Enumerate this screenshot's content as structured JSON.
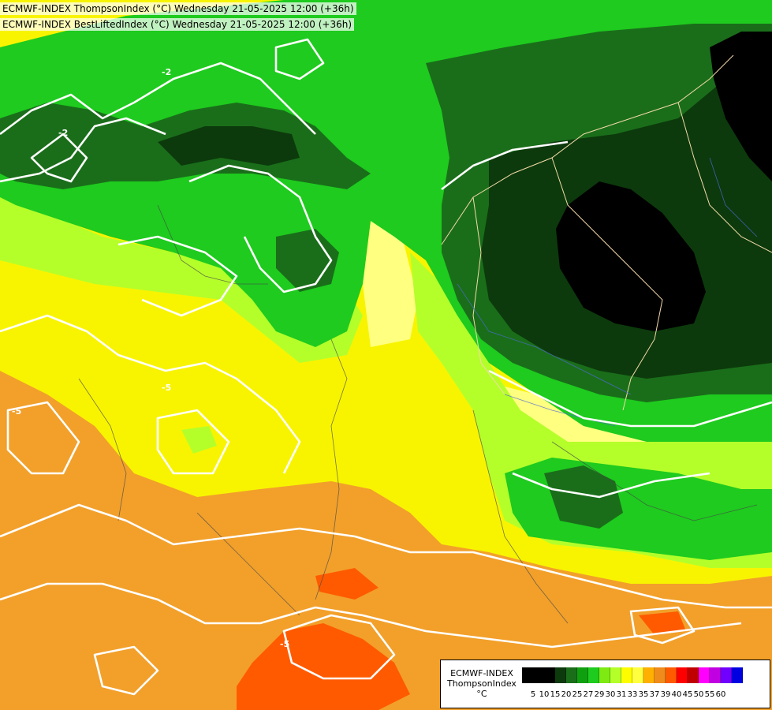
{
  "header": {
    "line1": "ECMWF-INDEX ThompsonIndex (°C) Wednesday 21-05-2025 12:00 (+36h)",
    "line2": "ECMWF-INDEX BestLiftedIndex (°C) Wednesday 21-05-2025 12:00 (+36h)"
  },
  "legend": {
    "source": "ECMWF-INDEX",
    "parameter": "ThompsonIndex",
    "unit": "°C",
    "ticks": [
      "5",
      "10",
      "15",
      "20",
      "25",
      "27",
      "29",
      "30",
      "31",
      "33",
      "35",
      "37",
      "39",
      "40",
      "45",
      "50",
      "55",
      "60"
    ],
    "colors": [
      "#000000",
      "#000000",
      "#000000",
      "#0c3a0c",
      "#1a6e1a",
      "#0fa00f",
      "#1ecb1e",
      "#7eea12",
      "#b4ff2a",
      "#fdfd00",
      "#ffff40",
      "#ffb000",
      "#f08c1c",
      "#ff5a00",
      "#ff0000",
      "#c00000",
      "#ff00ff",
      "#c000e0",
      "#7000ff",
      "#0000e0"
    ]
  },
  "map_labels": {
    "contour_a": "-2",
    "contour_b": "-2",
    "contour_c": "-5",
    "contour_d": "-5",
    "contour_e": "-5"
  }
}
